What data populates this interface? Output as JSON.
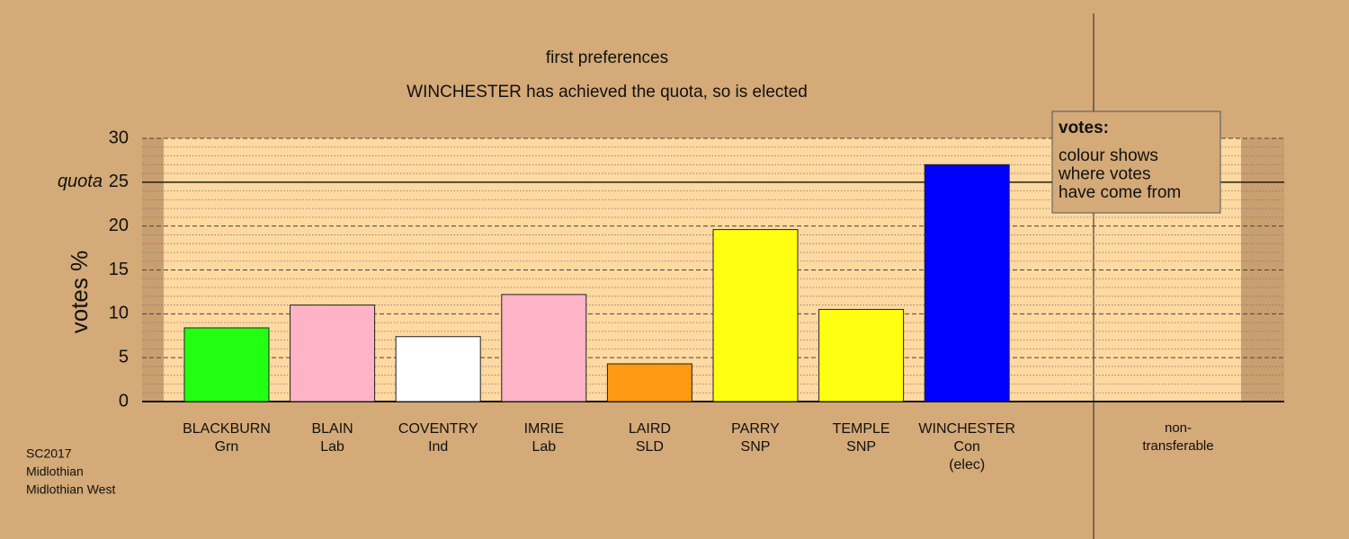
{
  "chart_data": {
    "type": "bar",
    "title": "first preferences",
    "subtitle": "WINCHESTER has achieved the quota, so is elected",
    "y_label": "votes %",
    "categories": [
      "BLACKBURN",
      "BLAIN",
      "COVENTRY",
      "IMRIE",
      "LAIRD",
      "PARRY",
      "TEMPLE",
      "WINCHESTER"
    ],
    "category_sublabels": [
      [
        "Grn"
      ],
      [
        "Lab"
      ],
      [
        "Ind"
      ],
      [
        "Lab"
      ],
      [
        "SLD"
      ],
      [
        "SNP"
      ],
      [
        "SNP"
      ],
      [
        "Con",
        "(elec)"
      ]
    ],
    "values": [
      8.4,
      11.0,
      7.4,
      12.2,
      4.3,
      19.6,
      10.5,
      27.0
    ],
    "colors": [
      "#22ff11",
      "#ffb3c6",
      "#ffffff",
      "#ffb3c6",
      "#ff9911",
      "#ffff11",
      "#ffff11",
      "#0000ff"
    ],
    "extra_column_label": [
      "non-",
      "transferable"
    ],
    "quota": 25,
    "quota_label": "quota",
    "ylim": [
      0,
      30
    ],
    "yticks": [
      0,
      5,
      10,
      15,
      20,
      25,
      30
    ],
    "minor_yticks": [
      1,
      2,
      3,
      4,
      6,
      7,
      8,
      9,
      11,
      12,
      13,
      14,
      16,
      17,
      18,
      19,
      21,
      22,
      23,
      24,
      26,
      27,
      28,
      29
    ],
    "grid": true,
    "legend": {
      "title": "votes:",
      "lines": [
        "colour shows",
        "where votes",
        "have come from"
      ]
    },
    "footer": [
      "SC2017",
      "Midlothian",
      "Midlothian West"
    ]
  }
}
